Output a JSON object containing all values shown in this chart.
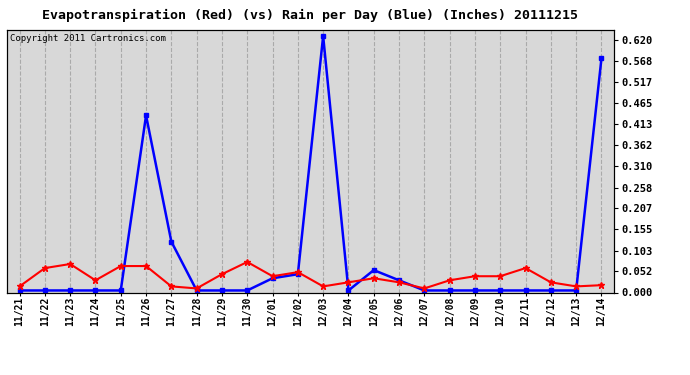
{
  "title": "Evapotranspiration (Red) (vs) Rain per Day (Blue) (Inches) 20111215",
  "copyright": "Copyright 2011 Cartronics.com",
  "x_labels": [
    "11/21",
    "11/22",
    "11/23",
    "11/24",
    "11/25",
    "11/26",
    "11/27",
    "11/28",
    "11/29",
    "11/30",
    "12/01",
    "12/02",
    "12/03",
    "12/04",
    "12/05",
    "12/06",
    "12/07",
    "12/08",
    "12/09",
    "12/10",
    "12/11",
    "12/12",
    "12/13",
    "12/14"
  ],
  "blue_data": [
    0.005,
    0.005,
    0.005,
    0.005,
    0.005,
    0.435,
    0.125,
    0.005,
    0.005,
    0.005,
    0.035,
    0.045,
    0.63,
    0.005,
    0.055,
    0.03,
    0.005,
    0.005,
    0.005,
    0.005,
    0.005,
    0.005,
    0.005,
    0.575
  ],
  "red_data": [
    0.015,
    0.06,
    0.07,
    0.03,
    0.065,
    0.065,
    0.015,
    0.01,
    0.045,
    0.075,
    0.04,
    0.05,
    0.015,
    0.025,
    0.035,
    0.025,
    0.01,
    0.03,
    0.04,
    0.04,
    0.06,
    0.025,
    0.015,
    0.018
  ],
  "y_ticks": [
    0.0,
    0.052,
    0.103,
    0.155,
    0.207,
    0.258,
    0.31,
    0.362,
    0.413,
    0.465,
    0.517,
    0.568,
    0.62
  ],
  "ylim": [
    0.0,
    0.645
  ],
  "blue_color": "#0000FF",
  "red_color": "#FF0000",
  "bg_color": "#FFFFFF",
  "plot_bg_color": "#D8D8D8",
  "grid_color": "#AAAAAA",
  "title_fontsize": 9.5,
  "copyright_fontsize": 6.5,
  "tick_fontsize": 7
}
